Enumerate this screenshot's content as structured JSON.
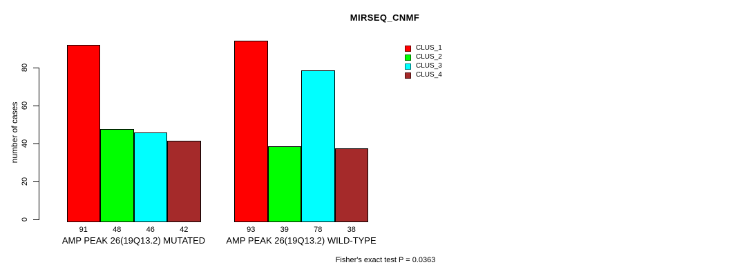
{
  "figure": {
    "background": "#ffffff"
  },
  "chart_data": {
    "type": "bar",
    "title": "MIRSEQ_CNMF",
    "ylabel": "number of cases",
    "xlabel": "",
    "categories": [
      "AMP PEAK 26(19Q13.2) MUTATED",
      "AMP PEAK 26(19Q13.2) WILD-TYPE"
    ],
    "series": [
      {
        "name": "CLUS_1",
        "color": "#ff0000",
        "values": [
          91,
          93
        ]
      },
      {
        "name": "CLUS_2",
        "color": "#00ff00",
        "values": [
          48,
          39
        ]
      },
      {
        "name": "CLUS_3",
        "color": "#00ffff",
        "values": [
          46,
          78
        ]
      },
      {
        "name": "CLUS_4",
        "color": "#a52a2a",
        "values": [
          42,
          38
        ]
      }
    ],
    "show_bar_values": true,
    "yticks": [
      0,
      20,
      40,
      60,
      80
    ],
    "ylim": [
      0,
      93
    ],
    "grid": false,
    "legend_position": "right-of-plot",
    "annotation": "Fisher's exact test P = 0.0363"
  }
}
